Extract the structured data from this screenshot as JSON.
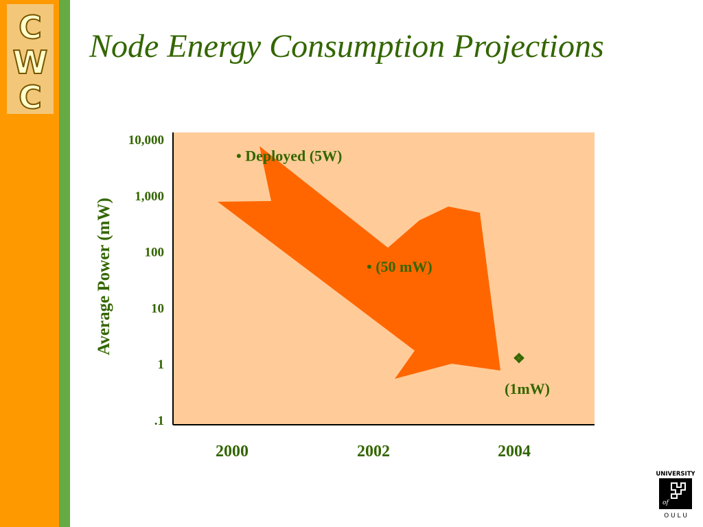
{
  "logo": {
    "letters": [
      "C",
      "W",
      "C"
    ]
  },
  "university_logo": {
    "text_top": "UNIVERSITY",
    "text_of": "of",
    "text_bottom": "O U L U"
  },
  "colors": {
    "sidebar": "#ff9900",
    "stripe": "#66aa44",
    "accent_green": "#336600",
    "plot_bg": "#ffcc99",
    "arrow": "#ff6600"
  },
  "chart_data": {
    "type": "line",
    "title": "Node Energy Consumption Projections",
    "ylabel": "Average Power (mW)",
    "xlabel": "",
    "y_scale": "log",
    "ylim": [
      0.1,
      10000
    ],
    "y_ticks": [
      {
        "value": 10000,
        "label": "10,000"
      },
      {
        "value": 1000,
        "label": "1,000"
      },
      {
        "value": 100,
        "label": "100"
      },
      {
        "value": 10,
        "label": "10"
      },
      {
        "value": 1,
        "label": "1"
      },
      {
        "value": 0.1,
        "label": ".1"
      }
    ],
    "x_ticks": [
      "2000",
      "2002",
      "2004"
    ],
    "grid": false,
    "points": [
      {
        "x": "2000",
        "y": 5000,
        "label": "• Deployed (5W)"
      },
      {
        "x": "2002",
        "y": 50,
        "label": "• (50 mW)"
      },
      {
        "x": "2004",
        "y": 1,
        "label": "(1mW)",
        "marker": "❖"
      }
    ]
  }
}
